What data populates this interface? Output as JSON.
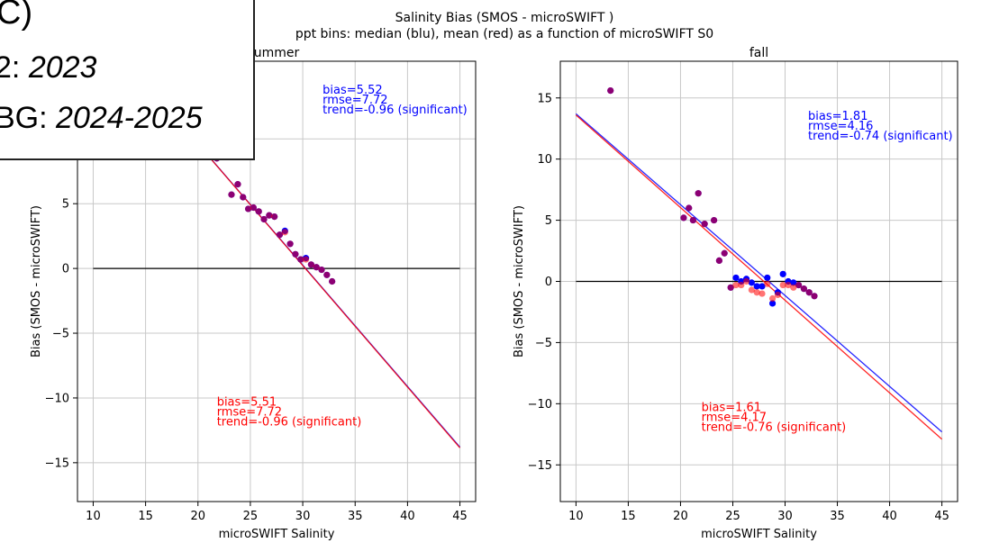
{
  "figure": {
    "title": "Salinity Bias (SMOS - microSWIFT )",
    "subtitle": "ppt bins: median (blu), mean (red) as a function of microSWIFT S0"
  },
  "overlay": {
    "line1": "C)",
    "line2_prefix": "2: ",
    "line2_year": "2023",
    "line3_prefix": "BG: ",
    "line3_year": "2024-2025"
  },
  "colors": {
    "median": "#0000ff",
    "mean": "#ff0000",
    "zero_line": "#000000",
    "grid": "#c8c8c8"
  },
  "chart_data": [
    {
      "type": "scatter",
      "title": "ummer",
      "xlabel": "microSWIFT Salinity",
      "ylabel": "Bias (SMOS - microSWIFT)",
      "xlim": [
        8.5,
        46.5
      ],
      "ylim": [
        -18,
        16
      ],
      "xticks": [
        10,
        15,
        20,
        25,
        30,
        35,
        40,
        45
      ],
      "yticks": [
        -15,
        -10,
        -5,
        0,
        5,
        10
      ],
      "grid": true,
      "series": [
        {
          "name": "median",
          "color": "#0000ff",
          "x": [
            20.7,
            21.8,
            22.7,
            23.2,
            23.8,
            24.3,
            24.8,
            25.3,
            25.8,
            26.3,
            26.8,
            27.3,
            27.8,
            28.3,
            28.8,
            29.3,
            29.8,
            30.3,
            30.8,
            31.3,
            31.8,
            32.3,
            32.8
          ],
          "y": [
            9.6,
            8.5,
            8.6,
            5.7,
            6.5,
            5.5,
            4.6,
            4.7,
            4.4,
            3.8,
            4.1,
            4.0,
            2.6,
            2.9,
            1.9,
            1.1,
            0.7,
            0.8,
            0.3,
            0.1,
            -0.1,
            -0.5,
            -1.0
          ]
        },
        {
          "name": "mean",
          "color": "#ff0000",
          "x": [
            20.7,
            21.8,
            22.7,
            23.2,
            23.8,
            24.3,
            24.8,
            25.3,
            25.8,
            26.3,
            26.8,
            27.3,
            27.8,
            28.3,
            28.8,
            29.3,
            29.8,
            30.3,
            30.8,
            31.3,
            31.8,
            32.3,
            32.8
          ],
          "y": [
            9.6,
            8.5,
            8.6,
            5.7,
            6.5,
            5.5,
            4.6,
            4.7,
            4.4,
            3.8,
            4.1,
            4.0,
            2.6,
            2.8,
            1.9,
            1.1,
            0.7,
            0.7,
            0.3,
            0.1,
            -0.1,
            -0.5,
            -1.0
          ]
        }
      ],
      "trend_lines": [
        {
          "name": "median",
          "color": "#0000ff",
          "x": [
            10,
            45
          ],
          "y": [
            19.0,
            -13.8
          ]
        },
        {
          "name": "mean",
          "color": "#ff0000",
          "x": [
            10,
            45
          ],
          "y": [
            19.0,
            -13.85
          ]
        }
      ],
      "zero_line": {
        "x": [
          10,
          45
        ],
        "y": 0
      },
      "annotations": [
        {
          "color": "#0000ff",
          "x": 31.9,
          "y": 13.5,
          "lines": [
            "bias=5.52",
            "rmse=7.72",
            "trend=-0.96 (significant)"
          ]
        },
        {
          "color": "#ff0000",
          "x": 21.8,
          "y": -10.6,
          "lines": [
            "bias=5.51",
            "rmse=7.72",
            "trend=-0.96 (significant)"
          ]
        }
      ]
    },
    {
      "type": "scatter",
      "title": "fall",
      "xlabel": "microSWIFT Salinity",
      "ylabel": "Bias (SMOS - microSWIFT)",
      "xlim": [
        8.5,
        46.5
      ],
      "ylim": [
        -18,
        18
      ],
      "xticks": [
        10,
        15,
        20,
        25,
        30,
        35,
        40,
        45
      ],
      "yticks": [
        -15,
        -10,
        -5,
        0,
        5,
        10,
        15
      ],
      "grid": true,
      "series": [
        {
          "name": "median",
          "color": "#0000ff",
          "x": [
            13.3,
            20.3,
            20.8,
            21.2,
            21.7,
            22.3,
            23.2,
            23.7,
            24.2,
            24.8,
            25.3,
            25.8,
            26.3,
            26.8,
            27.3,
            27.8,
            28.3,
            28.8,
            29.3,
            29.8,
            30.3,
            30.8,
            31.3,
            31.8,
            32.3,
            32.8
          ],
          "y": [
            15.6,
            5.2,
            6.0,
            5.0,
            7.2,
            4.7,
            5.0,
            1.7,
            2.3,
            -0.5,
            0.3,
            0.0,
            0.2,
            -0.1,
            -0.4,
            -0.4,
            0.3,
            -1.8,
            -0.9,
            0.6,
            0.0,
            -0.1,
            -0.3,
            -0.6,
            -0.9,
            -1.2
          ]
        },
        {
          "name": "mean",
          "color": "#ff0000",
          "x": [
            13.3,
            20.3,
            20.8,
            21.2,
            21.7,
            22.3,
            23.2,
            23.7,
            24.2,
            24.8,
            25.3,
            25.8,
            26.3,
            26.8,
            27.3,
            27.8,
            28.3,
            28.8,
            29.3,
            29.8,
            30.3,
            30.8,
            31.3,
            31.8,
            32.3,
            32.8
          ],
          "y": [
            15.6,
            5.2,
            6.0,
            5.0,
            7.2,
            4.7,
            5.0,
            1.7,
            2.3,
            -0.5,
            -0.3,
            -0.3,
            0.0,
            -0.7,
            -0.9,
            -1.0,
            -0.2,
            -1.4,
            -1.1,
            -0.3,
            -0.3,
            -0.5,
            -0.3,
            -0.6,
            -0.9,
            -1.2
          ]
        }
      ],
      "trend_lines": [
        {
          "name": "median",
          "color": "#0000ff",
          "x": [
            10,
            45
          ],
          "y": [
            13.7,
            -12.3
          ]
        },
        {
          "name": "mean",
          "color": "#ff0000",
          "x": [
            10,
            45
          ],
          "y": [
            13.6,
            -12.9
          ]
        }
      ],
      "zero_line": {
        "x": [
          10,
          45
        ],
        "y": 0
      },
      "annotations": [
        {
          "color": "#0000ff",
          "x": 32.2,
          "y": 13.2,
          "lines": [
            "bias=1.81",
            "rmse=4.16",
            "trend=-0.74 (significant)"
          ]
        },
        {
          "color": "#ff0000",
          "x": 22.0,
          "y": -10.6,
          "lines": [
            "bias=1.61",
            "rmse=4.17",
            "trend=-0.76 (significant)"
          ]
        }
      ]
    }
  ]
}
